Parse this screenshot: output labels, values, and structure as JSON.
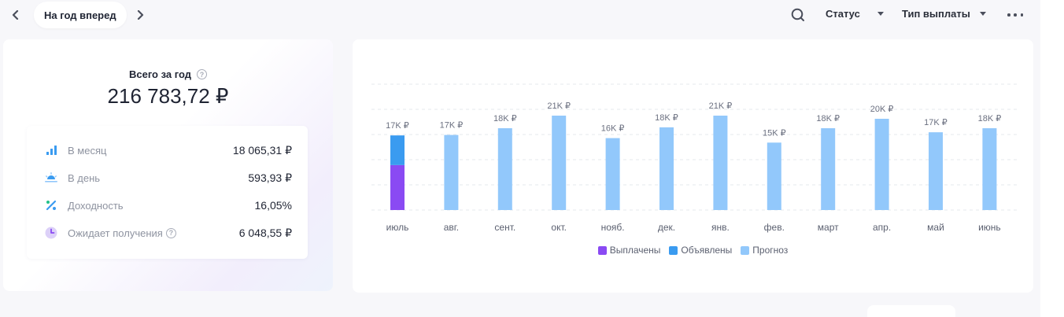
{
  "topbar": {
    "period_label": "На год вперед",
    "status_filter": "Статус",
    "payment_type_filter": "Тип выплаты",
    "icons": [
      "chevron-left-icon",
      "chevron-right-icon",
      "search-icon",
      "caret-down-icon",
      "more-icon"
    ]
  },
  "summary": {
    "title": "Всего за год",
    "total": "216 783,72 ₽",
    "stats": [
      {
        "label": "В месяц",
        "value": "18 065,31 ₽",
        "icon": "bar-chart-icon"
      },
      {
        "label": "В день",
        "value": "593,93 ₽",
        "icon": "sunrise-icon"
      },
      {
        "label": "Доходность",
        "value": "16,05%",
        "icon": "percent-icon"
      },
      {
        "label": "Ожидает получения",
        "value": "6 048,55 ₽",
        "icon": "clock-icon"
      }
    ]
  },
  "colors": {
    "paid": "#8a4af3",
    "declared": "#3a9bf0",
    "forecast": "#92c8fb",
    "accent_green": "#23c18a"
  },
  "chart_data": {
    "type": "bar",
    "stacked": true,
    "categories": [
      "июль",
      "авг.",
      "сент.",
      "окт.",
      "нояб.",
      "дек.",
      "янв.",
      "фев.",
      "март",
      "апр.",
      "май",
      "июнь"
    ],
    "data_labels": [
      "17K ₽",
      "17K ₽",
      "18K ₽",
      "21K ₽",
      "16K ₽",
      "18K ₽",
      "21K ₽",
      "15K ₽",
      "18K ₽",
      "20K ₽",
      "17K ₽",
      "18K ₽"
    ],
    "series": [
      {
        "name": "Выплачены",
        "values": [
          10000,
          0,
          0,
          0,
          0,
          0,
          0,
          0,
          0,
          0,
          0,
          0
        ]
      },
      {
        "name": "Объявлены",
        "values": [
          6600,
          0,
          0,
          0,
          0,
          0,
          0,
          0,
          0,
          0,
          0,
          0
        ]
      },
      {
        "name": "Прогноз",
        "values": [
          0,
          16700,
          18200,
          21000,
          16000,
          18400,
          21000,
          15000,
          18200,
          20300,
          17300,
          18200
        ]
      }
    ],
    "ylim": [
      0,
      28000
    ],
    "grid": true,
    "legend_position": "bottom"
  }
}
